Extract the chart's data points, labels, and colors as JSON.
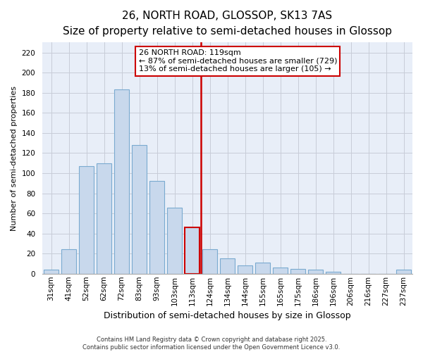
{
  "title": "26, NORTH ROAD, GLOSSOP, SK13 7AS",
  "subtitle": "Size of property relative to semi-detached houses in Glossop",
  "xlabel": "Distribution of semi-detached houses by size in Glossop",
  "ylabel": "Number of semi-detached properties",
  "categories": [
    "31sqm",
    "41sqm",
    "52sqm",
    "62sqm",
    "72sqm",
    "83sqm",
    "93sqm",
    "103sqm",
    "113sqm",
    "124sqm",
    "134sqm",
    "144sqm",
    "155sqm",
    "165sqm",
    "175sqm",
    "186sqm",
    "196sqm",
    "206sqm",
    "216sqm",
    "227sqm",
    "237sqm"
  ],
  "values": [
    4,
    24,
    107,
    110,
    183,
    128,
    92,
    66,
    46,
    24,
    15,
    8,
    11,
    6,
    5,
    4,
    2,
    0,
    0,
    0,
    4
  ],
  "bar_color": "#c8d8ec",
  "bar_edge_color": "#7aaad0",
  "highlight_bar_index": 8,
  "highlight_bar_edge_color": "#cc0000",
  "vline_x": 8.5,
  "vline_color": "#cc0000",
  "ylim": [
    0,
    230
  ],
  "yticks": [
    0,
    20,
    40,
    60,
    80,
    100,
    120,
    140,
    160,
    180,
    200,
    220
  ],
  "annotation_title": "26 NORTH ROAD: 119sqm",
  "annotation_line1": "← 87% of semi-detached houses are smaller (729)",
  "annotation_line2": "13% of semi-detached houses are larger (105) →",
  "footer_line1": "Contains HM Land Registry data © Crown copyright and database right 2025.",
  "footer_line2": "Contains public sector information licensed under the Open Government Licence v3.0.",
  "bg_color": "#e8eef8",
  "grid_color": "#c8ccd8",
  "title_fontsize": 11,
  "subtitle_fontsize": 9.5,
  "axis_label_fontsize": 9,
  "xlabel_fontsize": 9,
  "tick_fontsize": 7.5,
  "ylabel_fontsize": 8
}
